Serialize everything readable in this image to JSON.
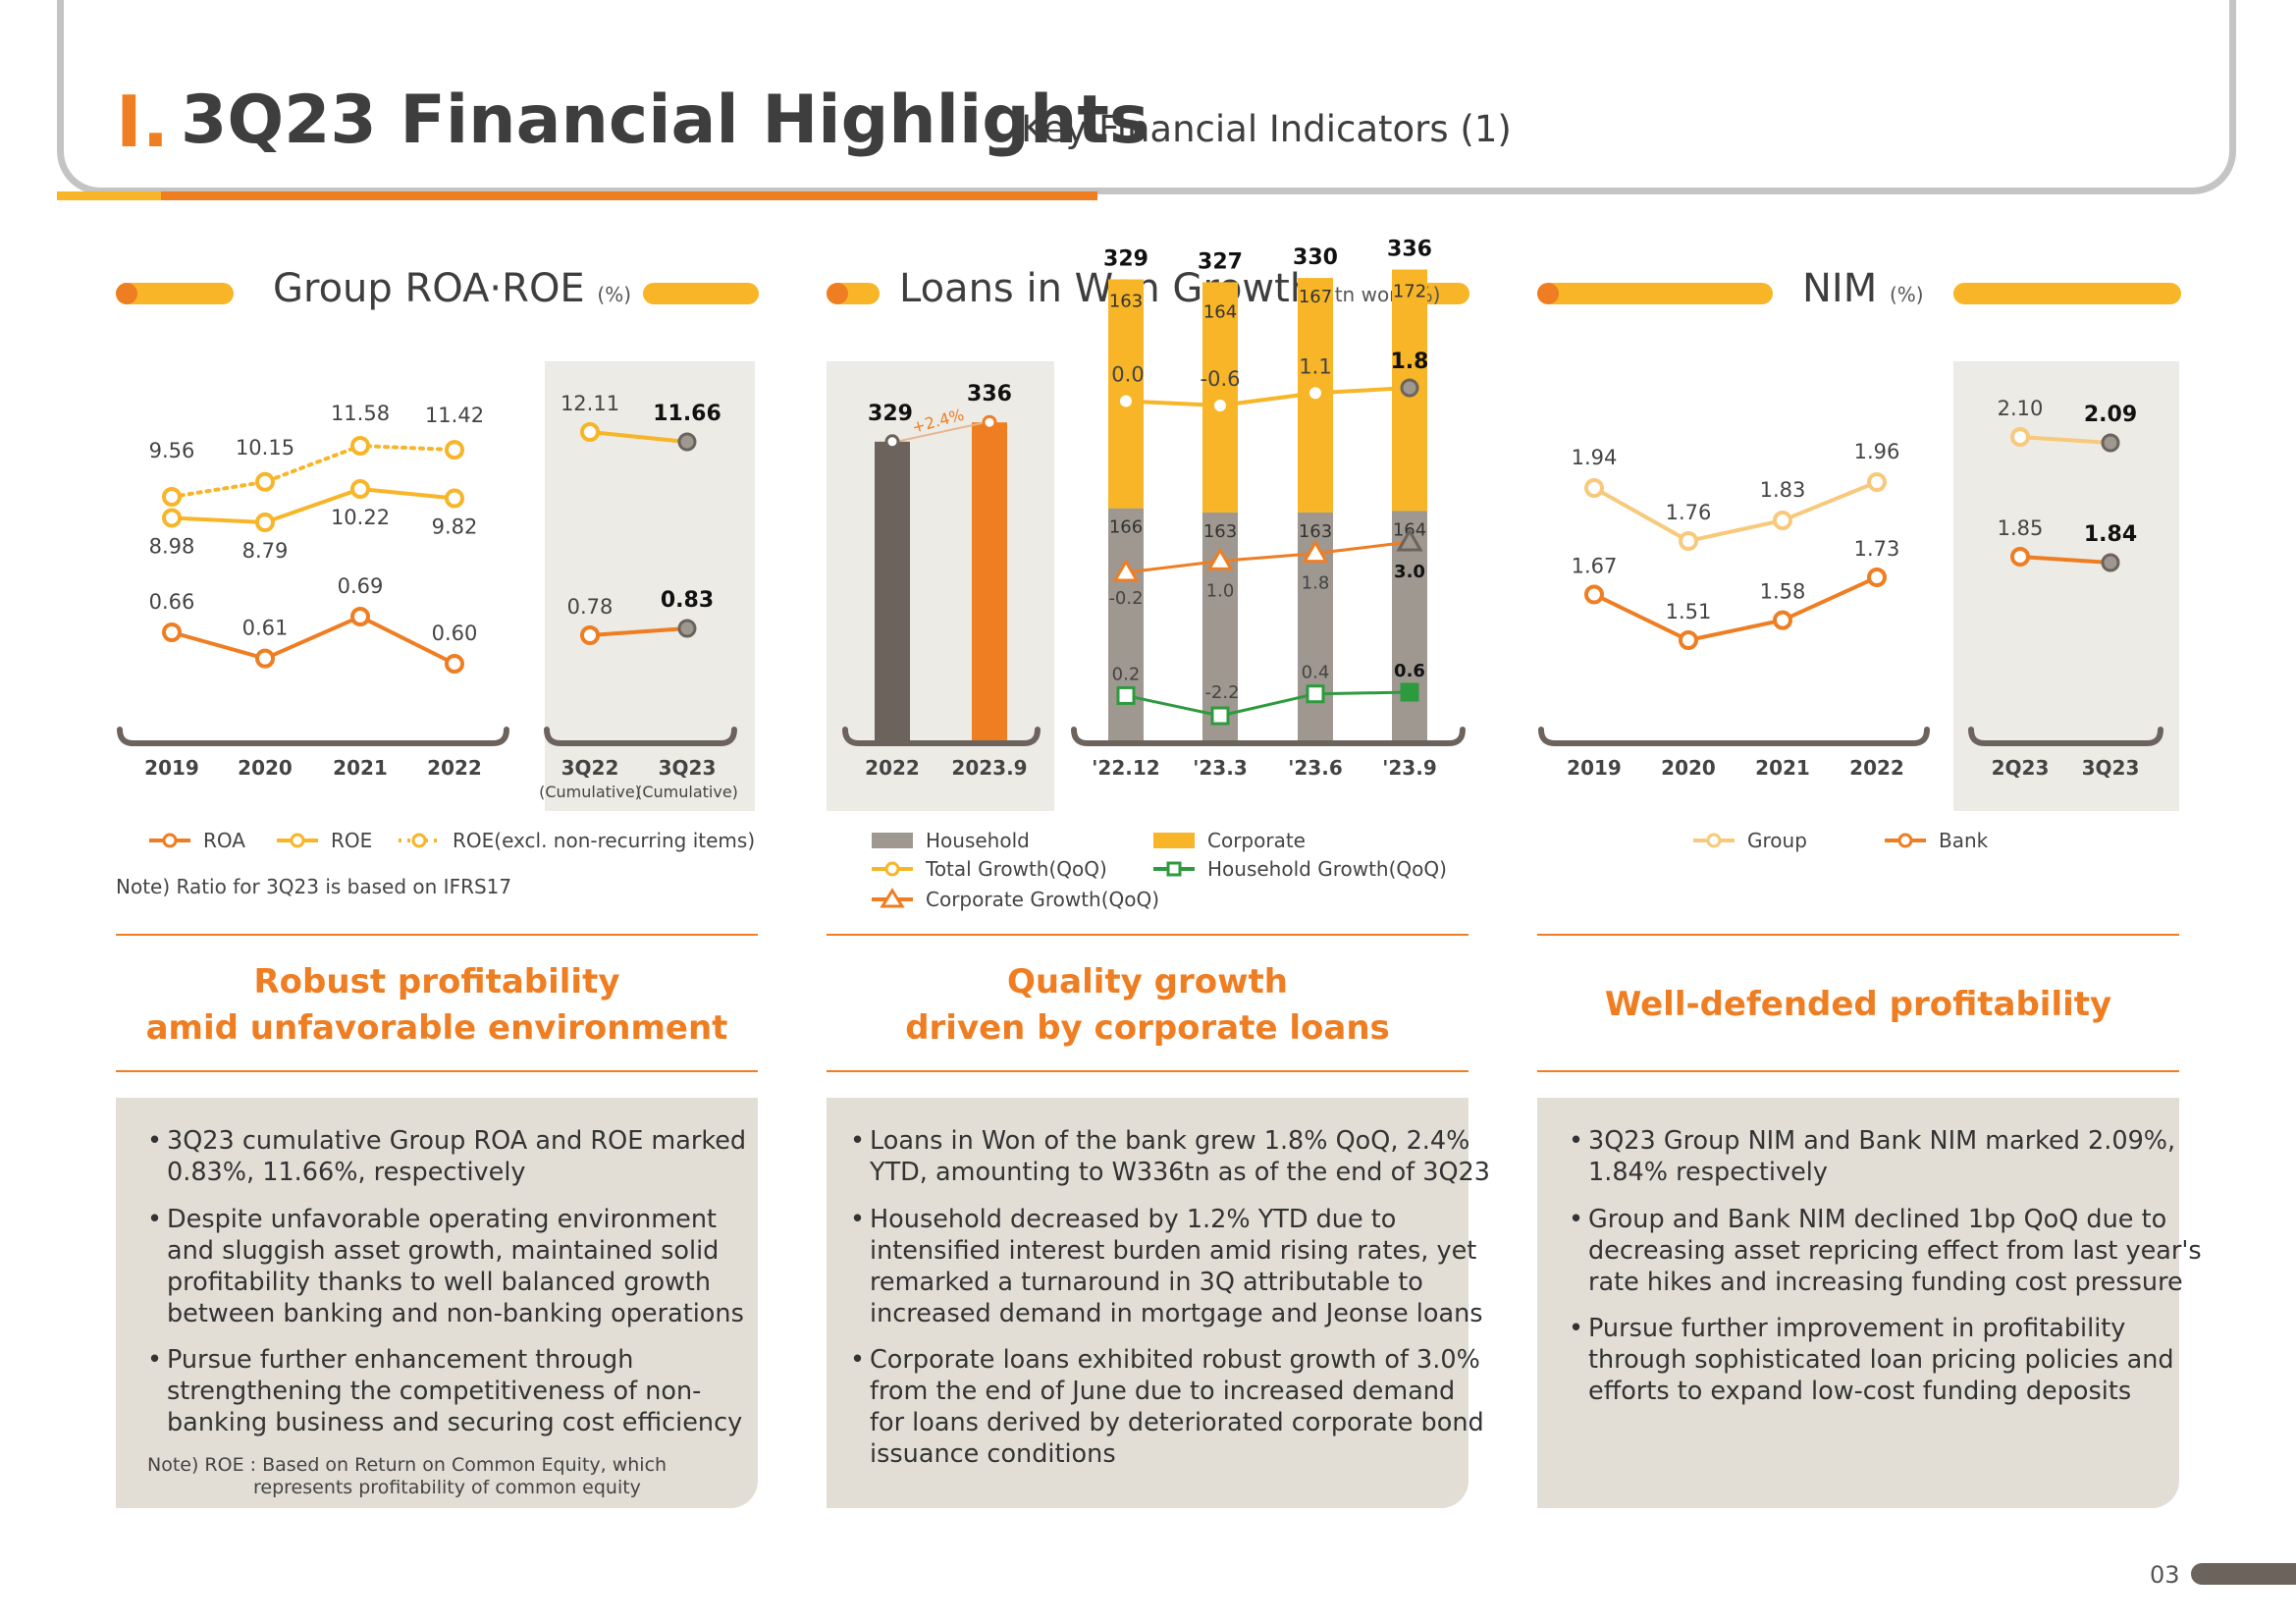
{
  "header": {
    "roman": "I.",
    "title": "3Q23 Financial Highlights",
    "subtitle": "_ Key Financial Indicators (1)"
  },
  "colors": {
    "orange": "#ef7d22",
    "yellow": "#f7b527",
    "brown": "#6b635c",
    "gray": "#9e9890",
    "green": "#2e9a3e"
  },
  "sections": [
    {
      "title": "Group ROA·ROE",
      "unit": "(%)"
    },
    {
      "title": "Loans in Won Growth",
      "unit": "(tn won, %)"
    },
    {
      "title": "NIM",
      "unit": "(%)"
    }
  ],
  "chart_data": [
    {
      "type": "line",
      "title": "Group ROA·ROE (%)",
      "categories": [
        "2019",
        "2020",
        "2021",
        "2022"
      ],
      "series": [
        {
          "name": "ROA",
          "values": [
            0.66,
            0.61,
            0.69,
            0.6
          ]
        },
        {
          "name": "ROE",
          "values": [
            8.98,
            8.79,
            10.22,
            9.82
          ]
        },
        {
          "name": "ROE(excl. non-recurring items)",
          "values": [
            9.56,
            10.15,
            11.58,
            11.42
          ]
        }
      ],
      "cumulative": {
        "categories": [
          "3Q22",
          "3Q23"
        ],
        "category_notes": [
          "(Cumulative)",
          "(Cumulative)"
        ],
        "ROA": [
          0.78,
          0.83
        ],
        "ROE": [
          12.11,
          11.66
        ]
      },
      "legend": [
        "ROA",
        "ROE",
        "ROE(excl. non-recurring items)"
      ],
      "note": "Note) Ratio for 3Q23 is based on IFRS17"
    },
    {
      "type": "bar",
      "title": "Loans in Won Growth (tn won, %)",
      "annual": {
        "categories": [
          "2022",
          "2023.9"
        ],
        "values": [
          329,
          336
        ],
        "growth_label": "+2.4%"
      },
      "categories": [
        "'22.12",
        "'23.3",
        "'23.6",
        "'23.9"
      ],
      "series": [
        {
          "name": "Household",
          "values": [
            166,
            163,
            163,
            164
          ]
        },
        {
          "name": "Corporate",
          "values": [
            163,
            164,
            167,
            172
          ]
        },
        {
          "name": "Total",
          "values": [
            329,
            327,
            330,
            336
          ]
        },
        {
          "name": "Total Growth(QoQ)",
          "values": [
            0.0,
            -0.6,
            1.1,
            1.8
          ]
        },
        {
          "name": "Corporate Growth(QoQ)",
          "values": [
            -0.2,
            1.0,
            1.8,
            3.0
          ]
        },
        {
          "name": "Household Growth(QoQ)",
          "values": [
            0.2,
            -2.2,
            0.4,
            0.6
          ]
        }
      ],
      "labels": {
        "total_growth": [
          "0.0",
          "-0.6",
          "1.1",
          "1.8"
        ],
        "corporate_growth": [
          "-0.2",
          "1.0",
          "1.8",
          "3.0"
        ],
        "household_growth": [
          "0.2",
          "-2.2",
          "0.4",
          "0.6"
        ]
      },
      "legend": [
        "Household",
        "Corporate",
        "Total Growth(QoQ)",
        "Household Growth(QoQ)",
        "Corporate Growth(QoQ)"
      ]
    },
    {
      "type": "line",
      "title": "NIM (%)",
      "categories": [
        "2019",
        "2020",
        "2021",
        "2022"
      ],
      "series": [
        {
          "name": "Group",
          "values": [
            1.94,
            1.76,
            1.83,
            1.96
          ]
        },
        {
          "name": "Bank",
          "values": [
            1.67,
            1.51,
            1.58,
            1.73
          ]
        }
      ],
      "quarterly": {
        "categories": [
          "2Q23",
          "3Q23"
        ],
        "Group": [
          2.1,
          2.09
        ],
        "Bank": [
          1.85,
          1.84
        ]
      },
      "legend": [
        "Group",
        "Bank"
      ]
    }
  ],
  "headlines": [
    [
      "Robust profitability",
      "amid unfavorable environment"
    ],
    [
      "Quality growth",
      "driven by corporate loans"
    ],
    [
      "Well-defended profitability"
    ]
  ],
  "bullets": [
    [
      [
        "3Q23 cumulative Group ROA and ROE marked",
        "0.83%, 11.66%, respectively"
      ],
      [
        "Despite unfavorable operating environment",
        "and sluggish asset growth, maintained solid",
        "profitability thanks to well balanced growth",
        "between banking and non-banking operations"
      ],
      [
        "Pursue further enhancement through",
        "strengthening the competitiveness of non-",
        "banking business and securing cost efficiency"
      ]
    ],
    [
      [
        "Loans in Won of the bank grew 1.8% QoQ, 2.4%",
        "YTD, amounting to W336tn as of the end of 3Q23"
      ],
      [
        "Household decreased by 1.2% YTD due to",
        "intensified interest burden amid rising rates, yet",
        "remarked a turnaround in 3Q attributable to",
        "increased demand in mortgage and Jeonse loans"
      ],
      [
        "Corporate loans exhibited robust growth of 3.0%",
        "from the end of June due to increased demand",
        "for loans derived by deteriorated corporate bond",
        "issuance conditions"
      ]
    ],
    [
      [
        "3Q23 Group NIM and Bank NIM marked 2.09%,",
        "1.84% respectively"
      ],
      [
        "Group and Bank NIM declined 1bp QoQ due to",
        "decreasing asset repricing effect from last year's",
        "rate hikes and increasing funding cost pressure"
      ],
      [
        "Pursue further improvement in profitability",
        "through sophisticated loan pricing policies and",
        "efforts to expand low-cost funding deposits"
      ]
    ]
  ],
  "roe_note": [
    "Note) ROE : Based on Return on Common Equity, which",
    "represents profitability of common equity"
  ],
  "page_number": "03"
}
